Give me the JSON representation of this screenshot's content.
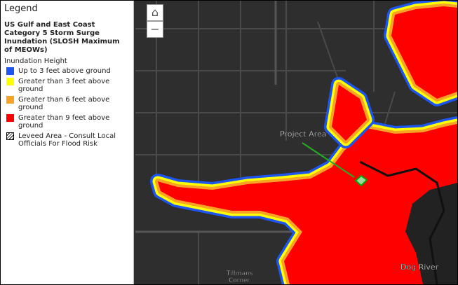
{
  "legend": {
    "title": "Legend",
    "layer_title": "US Gulf and East Coast Category 5 Storm Surge Inundation (SLOSH Maximum of MEOWs)",
    "subtitle": "Inundation Height",
    "items": [
      {
        "label": "Up to 3 feet above ground",
        "color": "#1c55f0"
      },
      {
        "label": "Greater than 3 feet above ground",
        "color": "#ffff00"
      },
      {
        "label": "Greater than 6 feet above ground",
        "color": "#f7a425"
      },
      {
        "label": "Greater than 9 feet above ground",
        "color": "#ff0000"
      },
      {
        "label": "Leveed Area - Consult Local Officials For Flood Risk",
        "color": "hatch"
      }
    ]
  },
  "map": {
    "labels": {
      "project_area": "Project Area",
      "river": "Dog River",
      "place_line1": "Tillmans",
      "place_line2": "Corner"
    }
  }
}
